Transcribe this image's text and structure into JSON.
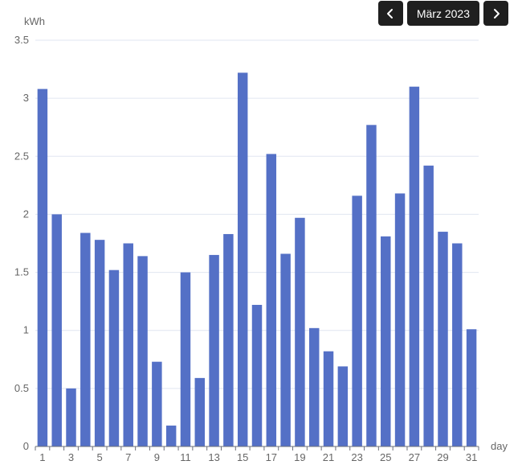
{
  "header": {
    "month_label": "März 2023",
    "prev_icon": "chevron-left-icon",
    "next_icon": "chevron-right-icon"
  },
  "colors": {
    "bar": "#5470c6",
    "grid": "#e0e6f1",
    "axis": "#6e7079",
    "nav_bg": "#1f1f1f"
  },
  "chart_data": {
    "type": "bar",
    "title": "",
    "xlabel": "day",
    "ylabel": "kWh",
    "ylim": [
      0,
      3.5
    ],
    "yticks": [
      0,
      0.5,
      1,
      1.5,
      2,
      2.5,
      3,
      3.5
    ],
    "ytick_labels": [
      "0",
      "0.5",
      "1",
      "1.5",
      "2",
      "2.5",
      "3",
      "3.5"
    ],
    "grid": true,
    "categories": [
      1,
      2,
      3,
      4,
      5,
      6,
      7,
      8,
      9,
      10,
      11,
      12,
      13,
      14,
      15,
      16,
      17,
      18,
      19,
      20,
      21,
      22,
      23,
      24,
      25,
      26,
      27,
      28,
      29,
      30,
      31
    ],
    "xtick_labels_shown": [
      1,
      3,
      5,
      7,
      9,
      11,
      13,
      15,
      17,
      19,
      21,
      23,
      25,
      27,
      29,
      31
    ],
    "values": [
      3.08,
      2.0,
      0.5,
      1.84,
      1.78,
      1.52,
      1.75,
      1.64,
      0.73,
      0.18,
      1.5,
      0.59,
      1.65,
      1.83,
      3.22,
      1.22,
      2.52,
      1.66,
      1.97,
      1.02,
      0.82,
      0.69,
      2.16,
      2.77,
      1.81,
      2.18,
      3.1,
      2.42,
      1.85,
      1.75,
      1.01
    ]
  }
}
